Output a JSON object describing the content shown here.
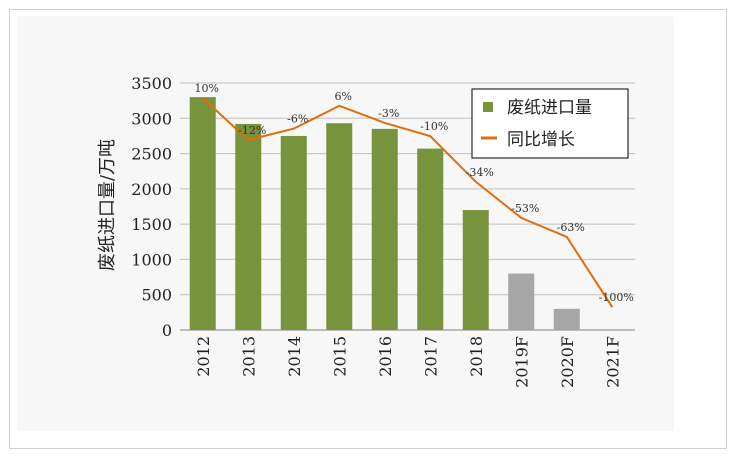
{
  "chart_data": {
    "type": "bar",
    "categories": [
      "2012",
      "2013",
      "2014",
      "2015",
      "2016",
      "2017",
      "2018",
      "2019F",
      "2020F",
      "2021F"
    ],
    "series": [
      {
        "name": "废纸进口量",
        "type": "bar",
        "values": [
          3300,
          2920,
          2750,
          2930,
          2850,
          2570,
          1700,
          800,
          300,
          0
        ],
        "colors": [
          "#77933c",
          "#77933c",
          "#77933c",
          "#77933c",
          "#77933c",
          "#77933c",
          "#77933c",
          "#a6a6a6",
          "#a6a6a6",
          "#a6a6a6"
        ]
      },
      {
        "name": "同比增长",
        "type": "line",
        "color": "#e46c0a",
        "labels": [
          "10%",
          "-12%",
          "-6%",
          "6%",
          "-3%",
          "-10%",
          "-34%",
          "-53%",
          "-63%",
          "-100%"
        ]
      }
    ],
    "ylabel": "废纸进口量/万吨",
    "ylim": [
      0,
      3500
    ],
    "yticks": [
      0,
      500,
      1000,
      1500,
      2000,
      2500,
      3000,
      3500
    ],
    "grid": true,
    "legend": "top-right"
  }
}
